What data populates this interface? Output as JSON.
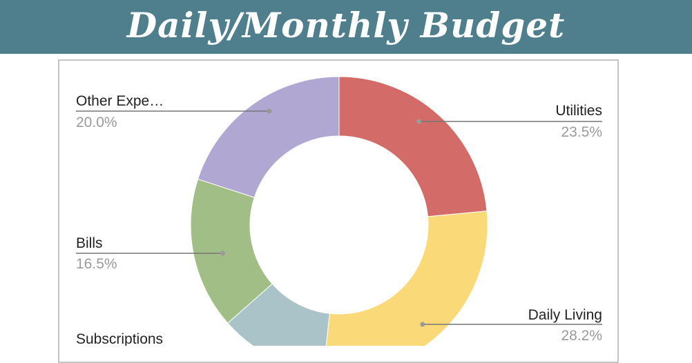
{
  "header": {
    "title": "Daily/Monthly Budget"
  },
  "colors": {
    "banner": "#4f7f8c",
    "frame": "#c4c4c4",
    "leader": "#777777"
  },
  "chart_data": {
    "type": "pie",
    "donut": true,
    "title": "",
    "legend": "labels-with-leader-lines",
    "slices": [
      {
        "label": "Utilities",
        "value": 23.5,
        "display": "23.5%",
        "color": "#d36b68"
      },
      {
        "label": "Daily Living",
        "value": 28.2,
        "display": "28.2%",
        "color": "#f9d978"
      },
      {
        "label": "Subscriptions",
        "value": 11.8,
        "display": "",
        "color": "#a9c3c8"
      },
      {
        "label": "Bills",
        "value": 16.5,
        "display": "16.5%",
        "color": "#a1be86"
      },
      {
        "label": "Other Expe…",
        "value": 20.0,
        "display": "20.0%",
        "color": "#b0a7d2"
      }
    ]
  }
}
